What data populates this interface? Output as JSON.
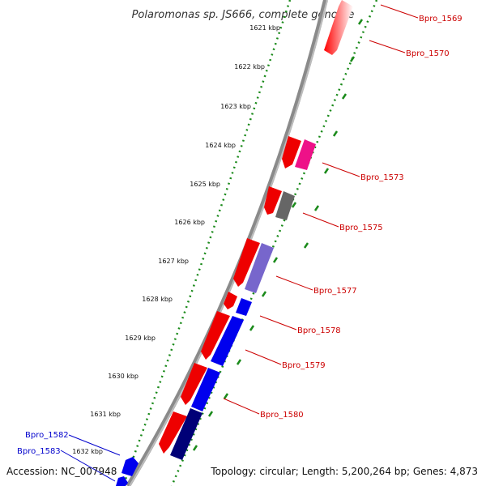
{
  "title": "Polaromonas sp. JS666, complete genome",
  "footer": {
    "accession": "Accession: NC_007948",
    "topology": "Topology: circular; Length: 5,200,264 bp; Genes: 4,873"
  },
  "colors": {
    "backbone": "#8a8a8a",
    "tick_green": "#1a8a1a",
    "forward_cds": "#ff0000",
    "reverse_cds": "#0000ff",
    "label_red": "#cc0000",
    "label_blue": "#0000cc"
  },
  "ticks": [
    {
      "label": "1621 kbp"
    },
    {
      "label": "1622 kbp"
    },
    {
      "label": "1623 kbp"
    },
    {
      "label": "1624 kbp"
    },
    {
      "label": "1625 kbp"
    },
    {
      "label": "1626 kbp"
    },
    {
      "label": "1627 kbp"
    },
    {
      "label": "1628 kbp"
    },
    {
      "label": "1629 kbp"
    },
    {
      "label": "1630 kbp"
    },
    {
      "label": "1631 kbp"
    },
    {
      "label": "1632 kbp"
    }
  ],
  "labels": [
    {
      "text": "Bpro_1569",
      "color": "#cc0000"
    },
    {
      "text": "Bpro_1570",
      "color": "#cc0000"
    },
    {
      "text": "Bpro_1573",
      "color": "#cc0000"
    },
    {
      "text": "Bpro_1575",
      "color": "#cc0000"
    },
    {
      "text": "Bpro_1577",
      "color": "#cc0000"
    },
    {
      "text": "Bpro_1578",
      "color": "#cc0000"
    },
    {
      "text": "Bpro_1579",
      "color": "#cc0000"
    },
    {
      "text": "Bpro_1580",
      "color": "#cc0000"
    },
    {
      "text": "Bpro_1582",
      "color": "#0000cc"
    },
    {
      "text": "Bpro_1583",
      "color": "#0000cc"
    }
  ]
}
